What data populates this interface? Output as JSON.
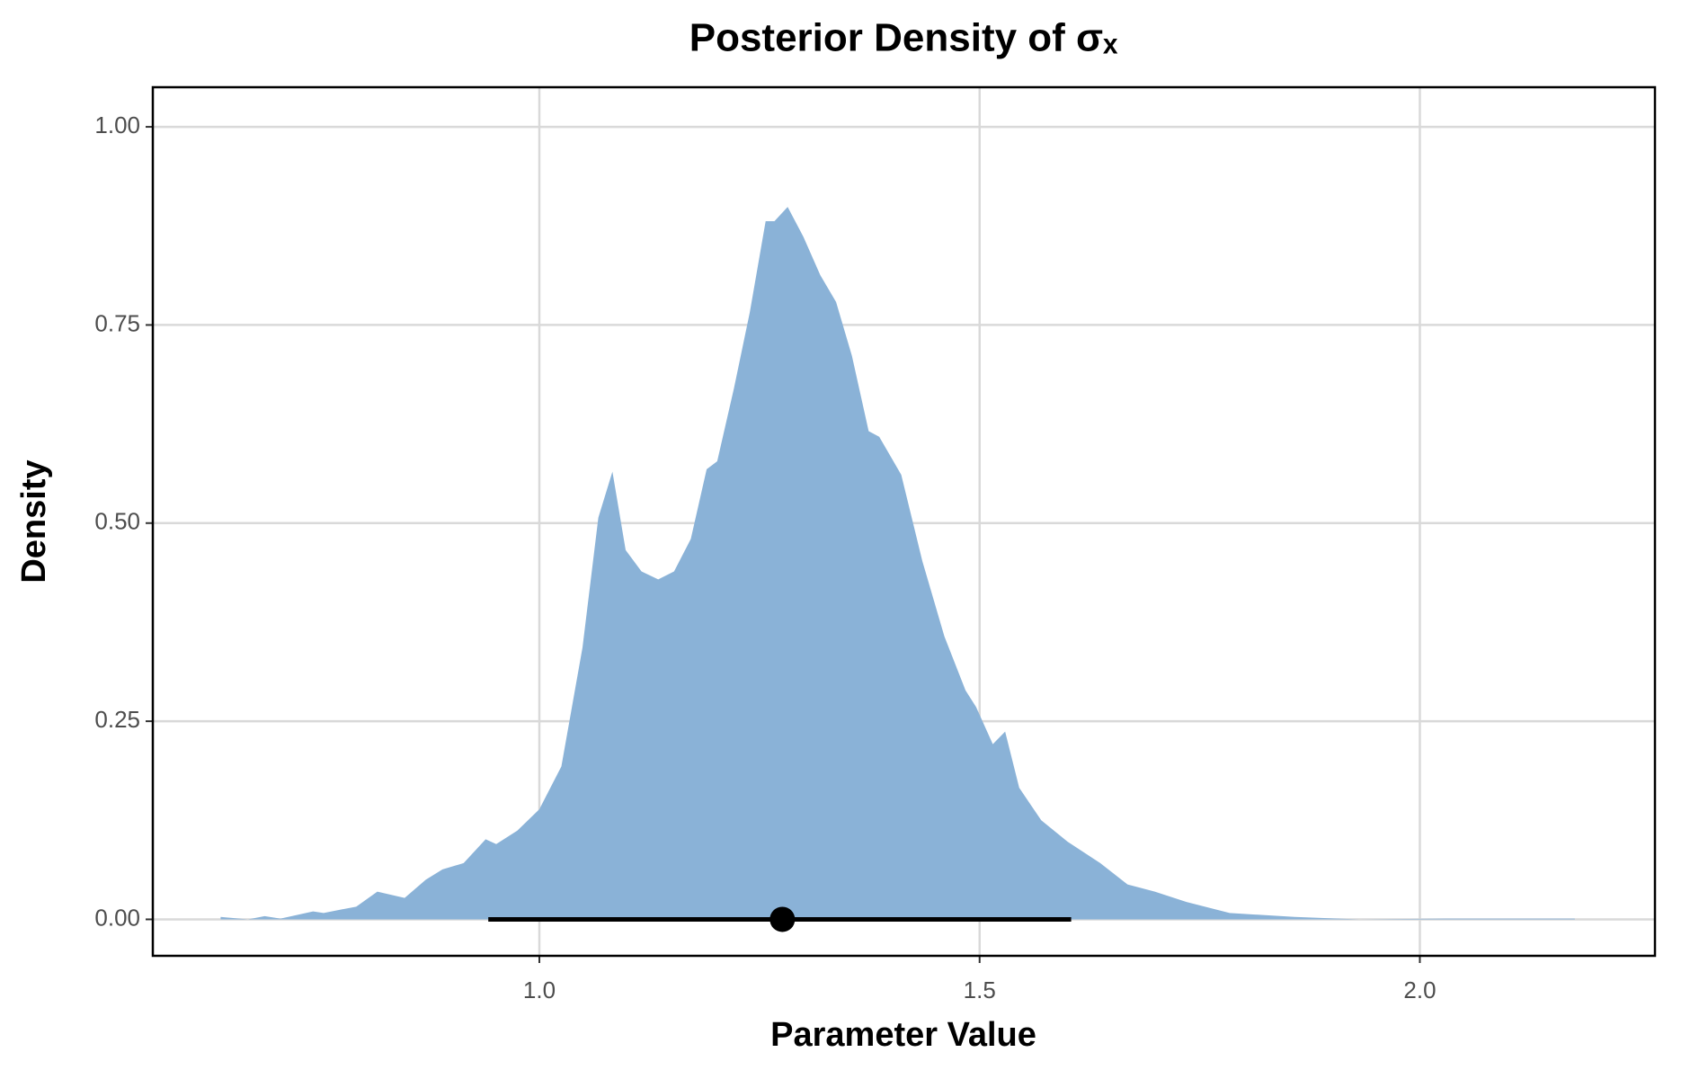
{
  "chart_data": {
    "type": "area",
    "title": "Posterior Density of σₓ",
    "x_label": "Parameter Value",
    "y_label": "Density",
    "color": "#8ab2d7",
    "grid": true,
    "x": [
      0.638,
      0.669,
      0.688,
      0.706,
      0.743,
      0.755,
      0.773,
      0.792,
      0.816,
      0.847,
      0.871,
      0.89,
      0.914,
      0.939,
      0.951,
      0.975,
      1.0,
      1.025,
      1.049,
      1.067,
      1.083,
      1.098,
      1.116,
      1.135,
      1.153,
      1.172,
      1.19,
      1.202,
      1.221,
      1.239,
      1.257,
      1.267,
      1.282,
      1.3,
      1.319,
      1.337,
      1.355,
      1.374,
      1.386,
      1.411,
      1.435,
      1.46,
      1.484,
      1.496,
      1.515,
      1.529,
      1.545,
      1.57,
      1.6,
      1.637,
      1.668,
      1.699,
      1.735,
      1.784,
      1.858,
      1.931,
      2.029,
      2.176
    ],
    "values": [
      0.003,
      0,
      0.004,
      0.001,
      0.01,
      0.008,
      0.012,
      0.016,
      0.035,
      0.027,
      0.05,
      0.063,
      0.071,
      0.101,
      0.095,
      0.112,
      0.139,
      0.193,
      0.343,
      0.507,
      0.565,
      0.466,
      0.439,
      0.429,
      0.439,
      0.48,
      0.568,
      0.578,
      0.67,
      0.766,
      0.881,
      0.881,
      0.899,
      0.861,
      0.813,
      0.779,
      0.711,
      0.616,
      0.609,
      0.561,
      0.452,
      0.357,
      0.289,
      0.268,
      0.221,
      0.237,
      0.166,
      0.125,
      0.098,
      0.071,
      0.044,
      0.035,
      0.022,
      0.008,
      0.003,
      0,
      0.001,
      0.001
    ],
    "interval": {
      "point": 1.276,
      "lower": 0.942,
      "upper": 1.604
    },
    "xlim": [
      0.561,
      2.267
    ],
    "ylim": [
      -0.046,
      1.05
    ],
    "xticks": [
      {
        "value": 1,
        "label": "1.0"
      },
      {
        "value": 1.5,
        "label": "1.5"
      },
      {
        "value": 2,
        "label": "2.0"
      }
    ],
    "yticks": [
      {
        "value": 0,
        "label": "0.00"
      },
      {
        "value": 0.25,
        "label": "0.25"
      },
      {
        "value": 0.5,
        "label": "0.50"
      },
      {
        "value": 0.75,
        "label": "0.75"
      },
      {
        "value": 1,
        "label": "1.00"
      }
    ]
  }
}
